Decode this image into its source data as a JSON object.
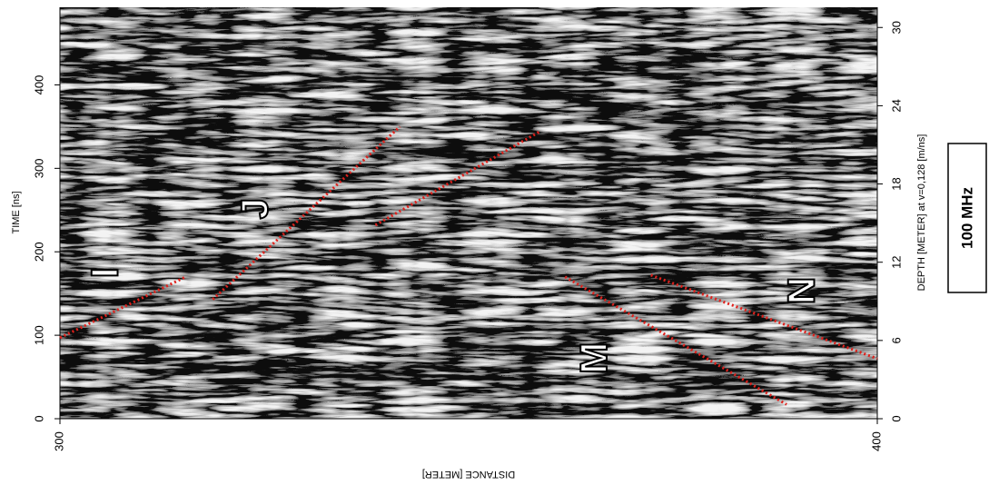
{
  "chart_data": {
    "type": "radargram",
    "xlabel": "DISTANCE [METER]",
    "ylabel": "TIME [ns]",
    "y2label": "DEPTH [METER] at v=0,128 [m/ns]",
    "frequency_label": "100 MHz",
    "xlim": [
      300,
      400
    ],
    "xticks": [
      300,
      400
    ],
    "ylim": [
      0,
      493
    ],
    "yticks": [
      0,
      100,
      200,
      300,
      400
    ],
    "y2lim": [
      0,
      31.55
    ],
    "y2ticks": [
      0,
      6,
      12,
      18,
      24,
      30
    ],
    "line_color": "#e0201b",
    "series": [
      {
        "name": "I",
        "x": [
          300,
          315.4
        ],
        "values": [
          97,
          170
        ]
      },
      {
        "name": "J",
        "x": [
          318.7,
          341.6
        ],
        "values": [
          143,
          350
        ]
      },
      {
        "x": [
          338.6,
          358.7
        ],
        "values": [
          232,
          344
        ]
      },
      {
        "name": "M",
        "x": [
          361.8,
          388.9
        ],
        "values": [
          170,
          17
        ]
      },
      {
        "name": "N",
        "x": [
          372.3,
          400
        ],
        "values": [
          172,
          72
        ]
      }
    ]
  }
}
